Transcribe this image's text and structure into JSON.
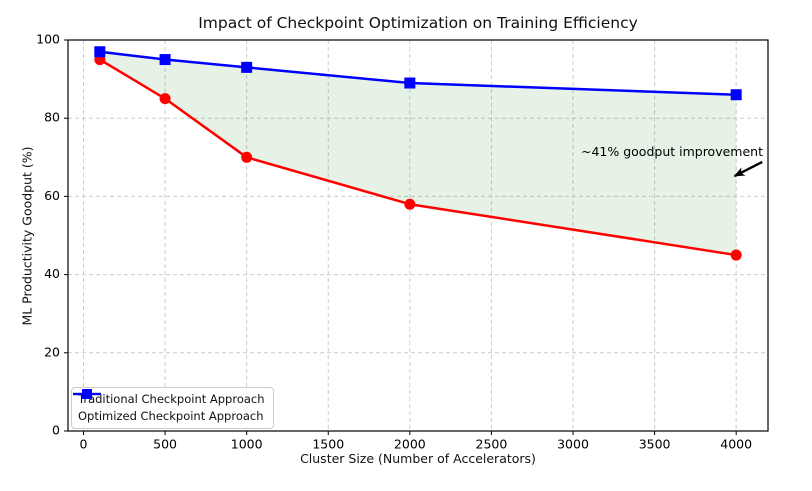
{
  "chart_data": {
    "type": "line",
    "title": "Impact of Checkpoint Optimization on Training Efficiency",
    "xlabel": "Cluster Size (Number of Accelerators)",
    "ylabel": "ML Productivity Goodput (%)",
    "x": [
      100,
      500,
      1000,
      2000,
      4000
    ],
    "series": [
      {
        "name": "Traditional Checkpoint Approach",
        "values": [
          95,
          85,
          70,
          58,
          45
        ],
        "color": "#ff0000",
        "marker": "circle"
      },
      {
        "name": "Optimized Checkpoint Approach",
        "values": [
          97,
          95,
          93,
          89,
          86
        ],
        "color": "#0000ff",
        "marker": "square"
      }
    ],
    "fill_between": {
      "between_series": [
        0,
        1
      ],
      "color": "#008000",
      "opacity": 0.1
    },
    "xticks": [
      0,
      500,
      1000,
      1500,
      2000,
      2500,
      3000,
      3500,
      4000
    ],
    "yticks": [
      0,
      20,
      40,
      60,
      80,
      100
    ],
    "xlim": [
      -95,
      4195
    ],
    "ylim": [
      0,
      100
    ],
    "grid": true,
    "grid_style": "dashed",
    "legend_position": "lower left",
    "annotation": {
      "text": "~41% goodput improvement",
      "arrow_from": {
        "x": 4160,
        "y": 68.8
      },
      "arrow_to": {
        "x": 3990,
        "y": 65.2
      },
      "arrow_color": "#000000"
    }
  },
  "colors": {
    "background": "#ffffff",
    "grid": "#cccccc",
    "spine": "#000000",
    "tick_label": "#000000",
    "title": "#111111"
  }
}
